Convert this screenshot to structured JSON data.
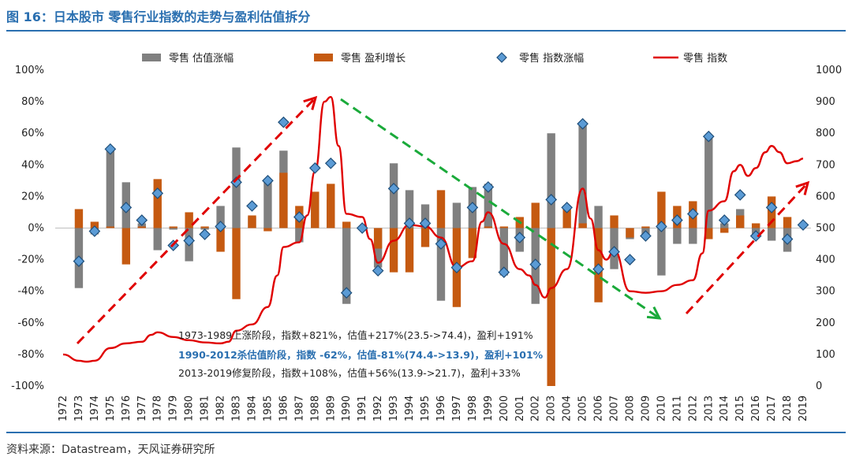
{
  "header": {
    "title": "图 16：日本股市  零售行业指数的走势与盈利估值拆分"
  },
  "footer": {
    "source": "资料来源：Datastream，天风证券研究所"
  },
  "colors": {
    "valuation": "#808080",
    "earnings": "#c55a11",
    "index_change": "#5b9bd5",
    "index": "#e00000",
    "up_arrow": "#e00000",
    "down_arrow": "#1aaa3a",
    "accent": "#2a6fb0"
  },
  "chart_data": {
    "type": "bar",
    "title": "",
    "xlabel": "",
    "ylabel_left": "",
    "ylabel_right": "",
    "ylim_left": [
      -1.0,
      1.0
    ],
    "ylim_right": [
      0,
      1000
    ],
    "left_ticks": [
      "100%",
      "80%",
      "60%",
      "40%",
      "20%",
      "0%",
      "-20%",
      "-40%",
      "-60%",
      "-80%",
      "-100%"
    ],
    "right_ticks": [
      "1000",
      "900",
      "800",
      "700",
      "600",
      "500",
      "400",
      "300",
      "200",
      "100",
      "0"
    ],
    "legend_position": "top",
    "categories": [
      "1972",
      "1973",
      "1974",
      "1975",
      "1976",
      "1977",
      "1978",
      "1979",
      "1980",
      "1981",
      "1982",
      "1983",
      "1984",
      "1985",
      "1986",
      "1987",
      "1988",
      "1989",
      "1990",
      "1991",
      "1992",
      "1993",
      "1994",
      "1995",
      "1996",
      "1997",
      "1998",
      "1999",
      "2000",
      "2001",
      "2002",
      "2003",
      "2004",
      "2005",
      "2006",
      "2007",
      "2008",
      "2009",
      "2010",
      "2011",
      "2012",
      "2013",
      "2014",
      "2015",
      "2016",
      "2017",
      "2018",
      "2019"
    ],
    "series": [
      {
        "name": "零售 估值涨幅",
        "kind": "bar",
        "values": [
          null,
          -0.38,
          -0.04,
          0.5,
          0.29,
          0.03,
          -0.14,
          -0.01,
          -0.21,
          -0.01,
          0.14,
          0.51,
          0.07,
          0.3,
          0.49,
          -0.09,
          0.18,
          0.18,
          -0.48,
          -0.01,
          -0.25,
          0.41,
          0.24,
          0.15,
          -0.46,
          0.16,
          0.26,
          0.28,
          -0.3,
          -0.15,
          -0.48,
          0.6,
          0.01,
          0.65,
          0.14,
          -0.26,
          -0.07,
          -0.04,
          -0.3,
          -0.1,
          -0.1,
          0.57,
          0.03,
          0.12,
          -0.06,
          -0.08,
          -0.15,
          null
        ]
      },
      {
        "name": "零售 盈利增长",
        "kind": "bar",
        "values": [
          null,
          0.12,
          0.04,
          0.01,
          -0.23,
          0.01,
          0.31,
          0.01,
          0.1,
          0.01,
          -0.15,
          -0.45,
          0.08,
          -0.02,
          0.35,
          0.14,
          0.23,
          0.28,
          0.04,
          0.01,
          -0.13,
          -0.28,
          -0.28,
          -0.12,
          0.24,
          -0.5,
          -0.19,
          0.01,
          0.01,
          0.07,
          0.16,
          -1.0,
          0.13,
          0.03,
          -0.47,
          0.08,
          -0.06,
          0.01,
          0.23,
          0.14,
          0.17,
          -0.07,
          -0.03,
          0.08,
          0.03,
          0.2,
          0.07,
          null
        ]
      },
      {
        "name": "零售 指数涨幅",
        "kind": "marker",
        "values": [
          null,
          -0.21,
          -0.02,
          0.5,
          0.13,
          0.05,
          0.22,
          -0.11,
          -0.08,
          -0.04,
          0.01,
          0.29,
          0.14,
          0.3,
          0.67,
          0.07,
          0.38,
          0.41,
          -0.41,
          0.0,
          -0.27,
          0.25,
          0.03,
          0.03,
          -0.1,
          -0.25,
          0.13,
          0.26,
          -0.28,
          -0.06,
          -0.23,
          0.18,
          0.13,
          0.66,
          -0.26,
          -0.15,
          -0.2,
          -0.05,
          0.01,
          0.05,
          0.09,
          0.58,
          0.05,
          0.21,
          -0.05,
          0.13,
          -0.07,
          0.02
        ]
      },
      {
        "name": "零售 指数",
        "kind": "line",
        "axis": "right",
        "points": [
          [
            1972,
            100
          ],
          [
            1973,
            80
          ],
          [
            1973.5,
            77
          ],
          [
            1974,
            80
          ],
          [
            1975,
            120
          ],
          [
            1976,
            135
          ],
          [
            1977,
            140
          ],
          [
            1977.6,
            162
          ],
          [
            1978,
            170
          ],
          [
            1979,
            155
          ],
          [
            1980,
            145
          ],
          [
            1981,
            138
          ],
          [
            1982,
            135
          ],
          [
            1982.5,
            140
          ],
          [
            1983,
            175
          ],
          [
            1984,
            195
          ],
          [
            1985,
            250
          ],
          [
            1985.6,
            350
          ],
          [
            1986,
            440
          ],
          [
            1987,
            455
          ],
          [
            1987.5,
            540
          ],
          [
            1988,
            680
          ],
          [
            1988.6,
            900
          ],
          [
            1989,
            915
          ],
          [
            1989.5,
            760
          ],
          [
            1990,
            545
          ],
          [
            1991,
            535
          ],
          [
            1991.5,
            465
          ],
          [
            1992,
            390
          ],
          [
            1993,
            460
          ],
          [
            1994,
            510
          ],
          [
            1995,
            505
          ],
          [
            1996,
            470
          ],
          [
            1997,
            375
          ],
          [
            1998,
            395
          ],
          [
            1998.6,
            520
          ],
          [
            1999,
            550
          ],
          [
            2000,
            450
          ],
          [
            2001,
            370
          ],
          [
            2001.6,
            350
          ],
          [
            2002,
            320
          ],
          [
            2002.6,
            280
          ],
          [
            2003,
            310
          ],
          [
            2004,
            370
          ],
          [
            2005,
            625
          ],
          [
            2005.5,
            530
          ],
          [
            2006,
            430
          ],
          [
            2006.5,
            400
          ],
          [
            2007,
            430
          ],
          [
            2008,
            300
          ],
          [
            2009,
            295
          ],
          [
            2010,
            300
          ],
          [
            2011,
            320
          ],
          [
            2012,
            335
          ],
          [
            2012.6,
            420
          ],
          [
            2013,
            555
          ],
          [
            2014,
            585
          ],
          [
            2014.6,
            680
          ],
          [
            2015,
            700
          ],
          [
            2015.5,
            665
          ],
          [
            2016,
            690
          ],
          [
            2016.6,
            740
          ],
          [
            2017,
            760
          ],
          [
            2017.5,
            740
          ],
          [
            2018,
            705
          ],
          [
            2018.6,
            712
          ],
          [
            2019,
            720
          ]
        ]
      }
    ],
    "annotations": [
      {
        "text": "1973-1989上涨阶段，指数+821%，估值+217%(23.5->74.4)，盈利+191%",
        "color": "#222222",
        "bold": false
      },
      {
        "text": "1990-2012杀估值阶段，指数 -62%，估值-81%(74.4->13.9)，盈利+101%",
        "color": "#2a6fb0",
        "bold": true
      },
      {
        "text": "2013-2019修复阶段，指数+108%，估值+56%(13.9->21.7)，盈利+33%",
        "color": "#222222",
        "bold": false
      }
    ]
  }
}
